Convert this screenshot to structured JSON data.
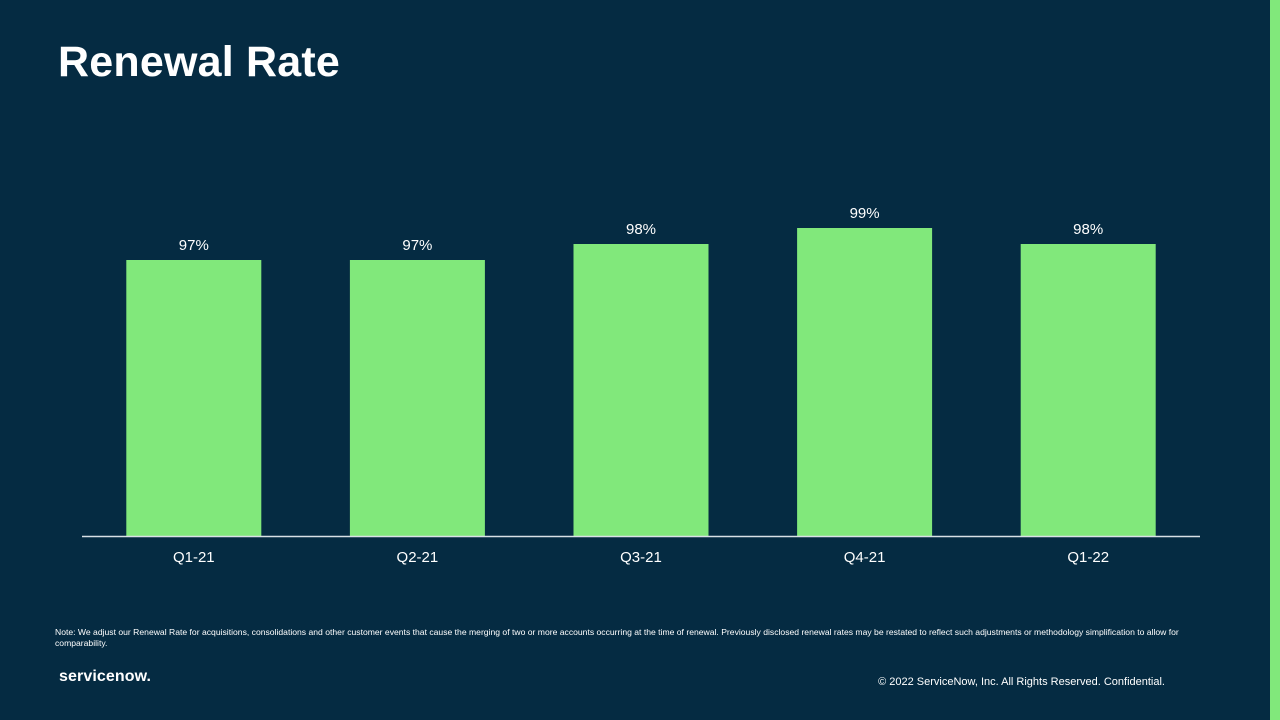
{
  "slide": {
    "title": "Renewal Rate",
    "note": "Note: We adjust our Renewal Rate for acquisitions, consolidations and other customer events that cause the merging of two or more accounts occurring at the time of renewal. Previously disclosed renewal rates may be restated to reflect such adjustments or methodology simplification to allow for comparability.",
    "logo_text": "servicenow.",
    "copyright": "© 2022 ServiceNow, Inc. All Rights Reserved. Confidential."
  },
  "colors": {
    "background": "#052b42",
    "bar": "#81e87b",
    "axis": "#d9e1e6",
    "text": "#ffffff"
  },
  "chart_data": {
    "type": "bar",
    "title": "Renewal Rate",
    "xlabel": "",
    "ylabel": "",
    "categories": [
      "Q1-21",
      "Q2-21",
      "Q3-21",
      "Q4-21",
      "Q1-22"
    ],
    "values": [
      97,
      97,
      98,
      99,
      98
    ],
    "value_labels": [
      "97%",
      "97%",
      "98%",
      "99%",
      "98%"
    ],
    "ylim": [
      80,
      100
    ],
    "grid": false,
    "legend": "none"
  }
}
